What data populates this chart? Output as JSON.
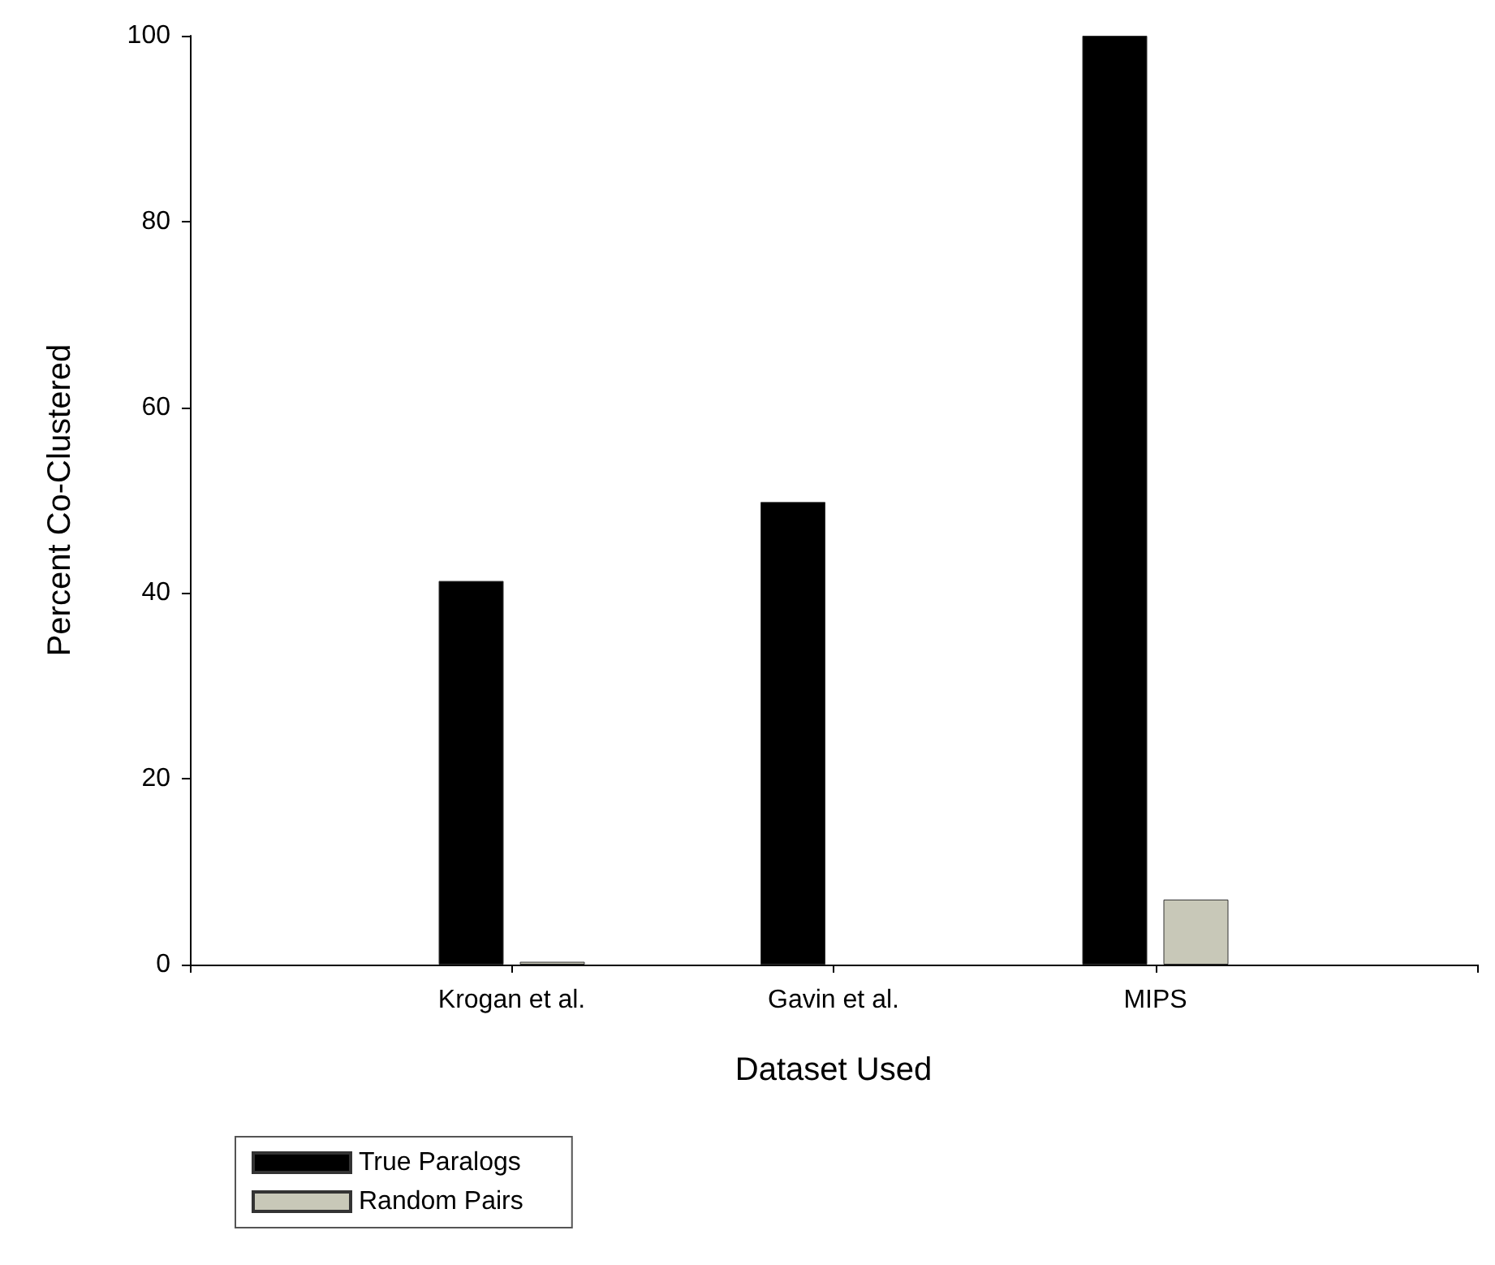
{
  "chart_data": {
    "type": "bar",
    "xlabel": "Dataset Used",
    "ylabel": "Percent Co-Clustered",
    "categories": [
      null,
      "Krogan et al.",
      "Gavin et al.",
      "MIPS",
      null
    ],
    "series": [
      {
        "name": "True Paralogs",
        "color": "#000000",
        "values": [
          null,
          41.3,
          49.8,
          100,
          null
        ]
      },
      {
        "name": "Random Pairs",
        "color": "#c8c8b8",
        "values": [
          null,
          0.3,
          null,
          7,
          null
        ]
      }
    ],
    "ylim": [
      0,
      100
    ],
    "yticks": [
      0,
      20,
      40,
      60,
      80,
      100
    ],
    "grid": false,
    "legend": "bottom left"
  }
}
